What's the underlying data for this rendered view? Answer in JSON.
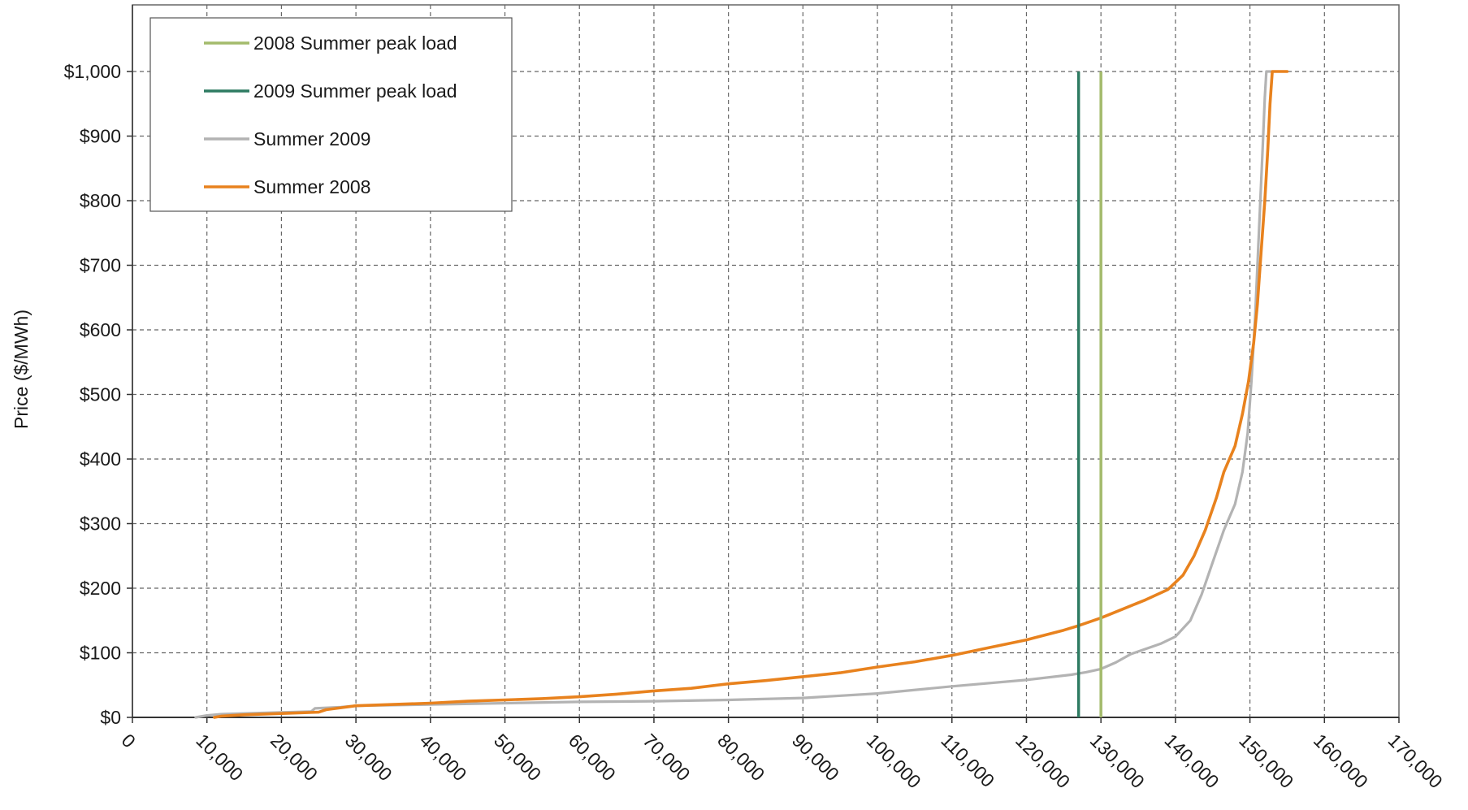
{
  "chart_data": {
    "type": "line",
    "title": "",
    "xlabel": "",
    "ylabel": "Price ($/MWh)",
    "xlim": [
      0,
      170000
    ],
    "ylim": [
      0,
      1000
    ],
    "x_ticks": [
      0,
      10000,
      20000,
      30000,
      40000,
      50000,
      60000,
      70000,
      80000,
      90000,
      100000,
      110000,
      120000,
      130000,
      140000,
      150000,
      160000,
      170000
    ],
    "x_tick_labels": [
      "0",
      "10,000",
      "20,000",
      "30,000",
      "40,000",
      "50,000",
      "60,000",
      "70,000",
      "80,000",
      "90,000",
      "100,000",
      "110,000",
      "120,000",
      "130,000",
      "140,000",
      "150,000",
      "160,000",
      "170,000"
    ],
    "y_ticks": [
      0,
      100,
      200,
      300,
      400,
      500,
      600,
      700,
      800,
      900,
      1000
    ],
    "y_tick_labels": [
      "$0",
      "$100",
      "$200",
      "$300",
      "$400",
      "$500",
      "$600",
      "$700",
      "$800",
      "$900",
      "$1,000"
    ],
    "grid": true,
    "legend_position": "top-left",
    "series": [
      {
        "name": "2008 Summer  peak load",
        "kind": "vline",
        "color": "#a4bb6c",
        "x": 130000,
        "y_range": [
          0,
          1000
        ]
      },
      {
        "name": "2009 Summer  peak load",
        "kind": "vline",
        "color": "#2e7b62",
        "x": 127000,
        "y_range": [
          0,
          1000
        ]
      },
      {
        "name": "Summer 2009",
        "kind": "curve",
        "color": "#b3b3b3",
        "points": [
          [
            8500,
            0
          ],
          [
            10000,
            3
          ],
          [
            12000,
            5
          ],
          [
            18000,
            7
          ],
          [
            24000,
            9
          ],
          [
            24500,
            14
          ],
          [
            28000,
            16
          ],
          [
            30000,
            18
          ],
          [
            40000,
            20
          ],
          [
            50000,
            22
          ],
          [
            60000,
            24
          ],
          [
            70000,
            25
          ],
          [
            80000,
            27
          ],
          [
            90000,
            30
          ],
          [
            100000,
            37
          ],
          [
            110000,
            48
          ],
          [
            120000,
            58
          ],
          [
            126000,
            66
          ],
          [
            128000,
            70
          ],
          [
            130000,
            75
          ],
          [
            132000,
            85
          ],
          [
            134000,
            98
          ],
          [
            136000,
            106
          ],
          [
            138000,
            114
          ],
          [
            140000,
            125
          ],
          [
            142000,
            150
          ],
          [
            143500,
            190
          ],
          [
            145000,
            240
          ],
          [
            146500,
            290
          ],
          [
            148000,
            330
          ],
          [
            149000,
            380
          ],
          [
            149700,
            440
          ],
          [
            150200,
            520
          ],
          [
            150700,
            620
          ],
          [
            151200,
            750
          ],
          [
            151700,
            880
          ],
          [
            152000,
            960
          ],
          [
            152200,
            1000
          ],
          [
            152800,
            1000
          ]
        ]
      },
      {
        "name": "Summer 2008",
        "kind": "curve",
        "color": "#e8821e",
        "points": [
          [
            11000,
            0
          ],
          [
            12000,
            2
          ],
          [
            15000,
            4
          ],
          [
            20000,
            6
          ],
          [
            25000,
            8
          ],
          [
            26000,
            12
          ],
          [
            28000,
            15
          ],
          [
            30000,
            18
          ],
          [
            35000,
            20
          ],
          [
            40000,
            22
          ],
          [
            45000,
            25
          ],
          [
            50000,
            27
          ],
          [
            55000,
            29
          ],
          [
            60000,
            32
          ],
          [
            65000,
            36
          ],
          [
            70000,
            41
          ],
          [
            75000,
            45
          ],
          [
            80000,
            52
          ],
          [
            85000,
            57
          ],
          [
            90000,
            63
          ],
          [
            95000,
            69
          ],
          [
            100000,
            78
          ],
          [
            105000,
            86
          ],
          [
            110000,
            96
          ],
          [
            115000,
            108
          ],
          [
            120000,
            120
          ],
          [
            125000,
            135
          ],
          [
            127000,
            142
          ],
          [
            130000,
            154
          ],
          [
            133000,
            168
          ],
          [
            136000,
            182
          ],
          [
            139000,
            198
          ],
          [
            141000,
            220
          ],
          [
            142500,
            250
          ],
          [
            144000,
            290
          ],
          [
            145500,
            340
          ],
          [
            146500,
            380
          ],
          [
            148000,
            420
          ],
          [
            149000,
            470
          ],
          [
            149800,
            520
          ],
          [
            150500,
            580
          ],
          [
            151000,
            640
          ],
          [
            151500,
            720
          ],
          [
            152000,
            800
          ],
          [
            152400,
            880
          ],
          [
            152700,
            950
          ],
          [
            153000,
            1000
          ],
          [
            155000,
            1000
          ]
        ]
      }
    ]
  }
}
